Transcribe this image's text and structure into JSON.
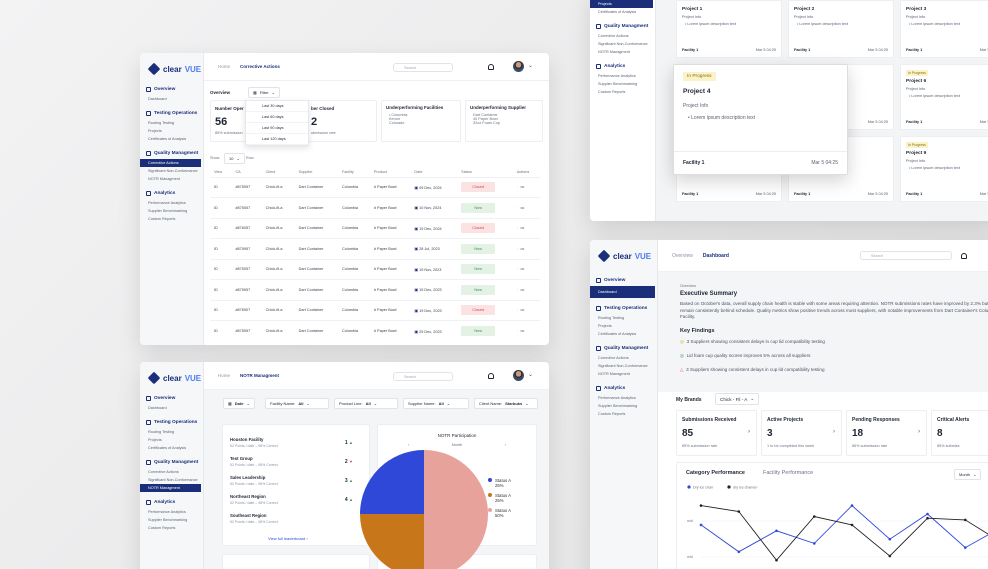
{
  "brand": {
    "name_a": "clear",
    "name_b": "VUE"
  },
  "sidebar": {
    "overview": "Overview",
    "dashboard": "Dashboard",
    "testing": "Testing Operations",
    "testing_items": [
      "Routing Testing",
      "Projects",
      "Certificates of Analysis"
    ],
    "quality": "Quality Managment",
    "quality_items": [
      "Corrective Actions",
      "Significant Non-Conformance",
      "NOTR Managment"
    ],
    "analytics": "Analytics",
    "analytics_items": [
      "Performance Analytics",
      "Supplier Benchmarking",
      "Custom Reports"
    ]
  },
  "w1": {
    "crumb_home": "Home",
    "crumb_current": "Corrective Actions",
    "search_placeholder": "Search",
    "overview_label": "Overview",
    "filter_label": "Filter",
    "filter_options": [
      "Last 30 days",
      "Last 60 days",
      "Last 90 days",
      "Last 120 days"
    ],
    "stats": [
      {
        "label": "Number Oper",
        "value": "56",
        "sub": "85% submission"
      },
      {
        "label": "ber Closed",
        "value": "2",
        "sub": "ubmission rate"
      }
    ],
    "under_facilities": {
      "title": "Underperforming Facilities",
      "items": [
        "Columbia",
        "Kenon",
        "Colorado"
      ]
    },
    "under_supplier": {
      "title": "Underperforming Supplier",
      "items": [
        "Dart Container",
        "40 Paper Bowl",
        "32oz Foam Cup"
      ]
    },
    "show_label": "Show",
    "show_value": "10",
    "row_label": "Row",
    "columns": [
      "View",
      "CA",
      "Client",
      "Supplier",
      "Facility",
      "Product",
      "Date",
      "Status",
      "Actions"
    ],
    "rows": [
      {
        "view": "ID",
        "ca": "#875957",
        "client": "Chick-fil-a",
        "supplier": "Dart Container",
        "facility": "Columbia",
        "product": "# Paper Bowl",
        "date": "09 Dec, 2024",
        "status": "Closed"
      },
      {
        "view": "ID",
        "ca": "#875057",
        "client": "Chick-fil-a",
        "supplier": "Dart Container",
        "facility": "Columbia",
        "product": "# Paper Bowl",
        "date": "10 Nov, 2024",
        "status": "New"
      },
      {
        "view": "ID",
        "ca": "#876057",
        "client": "Chick-fil-a",
        "supplier": "Dart Container",
        "facility": "Columbia",
        "product": "# Paper Bowl",
        "date": "19 Dec, 2024",
        "status": "Closed"
      },
      {
        "view": "ID",
        "ca": "#875957",
        "client": "Chick-fil-a",
        "supplier": "Dart Container",
        "facility": "Columbia",
        "product": "# Paper Bowl",
        "date": "28 Jul, 2023",
        "status": "New"
      },
      {
        "view": "ID",
        "ca": "#875057",
        "client": "Chick-fil-a",
        "supplier": "Dart Container",
        "facility": "Columbia",
        "product": "# Paper Bowl",
        "date": "19 Nov, 2023",
        "status": "New"
      },
      {
        "view": "ID",
        "ca": "#875957",
        "client": "Chick-fil-a",
        "supplier": "Dart Container",
        "facility": "Columbia",
        "product": "# Paper Bowl",
        "date": "15 Dec, 2023",
        "status": "New"
      },
      {
        "view": "ID",
        "ca": "#876907",
        "client": "Chick-fil-a",
        "supplier": "Dart Container",
        "facility": "Columbia",
        "product": "# Paper Bowl",
        "date": "19 Dec, 2023",
        "status": "Closed"
      },
      {
        "view": "ID",
        "ca": "#875957",
        "client": "Chick-fil-a",
        "supplier": "Dart Container",
        "facility": "Columbia",
        "product": "# Paper Bowl",
        "date": "25 Dec, 2023",
        "status": "New"
      }
    ]
  },
  "w2": {
    "crumb_home": "Home",
    "crumb_current": "NOTR Managment",
    "search_placeholder": "Search",
    "date_label": "Date",
    "filters": [
      {
        "label": "Facility Name:",
        "value": "All"
      },
      {
        "label": "Product Line:",
        "value": "All"
      },
      {
        "label": "Supplier Name:",
        "value": "All"
      },
      {
        "label": "Client Name:",
        "value": "Starbuks"
      }
    ],
    "leaders": [
      {
        "name": "Houston Facility",
        "sub": "52 Points / date – 98% Correct",
        "rank": "1"
      },
      {
        "name": "Test Group",
        "sub": "52 Points / date – 98% Correct",
        "rank": "2"
      },
      {
        "name": "Sales Leadership",
        "sub": "52 Points / date – 98% Correct",
        "rank": "3"
      },
      {
        "name": "Northeast Region",
        "sub": "52 Points / date – 98% Correct",
        "rank": "4"
      },
      {
        "name": "Southeast Region",
        "sub": "52 Points / date – 98% Correct",
        "rank": ""
      }
    ],
    "leaderboard_link": "View full leaderboard",
    "participation_title": "NOTR Participation",
    "period": "Month"
  },
  "chart_data": [
    {
      "type": "pie",
      "title": "NOTR Participation",
      "categories": [
        "Status A",
        "Status A",
        "Status A"
      ],
      "values": [
        25,
        25,
        50
      ],
      "labels": [
        "25%",
        "25%",
        "50%"
      ],
      "colors": [
        "#2f48d8",
        "#c8761a",
        "#e8a29c"
      ]
    },
    {
      "type": "line",
      "title": "Category Performance",
      "ylabel_ticks": [
        "mid",
        "mid"
      ],
      "legend": [
        "Dry ice chan",
        "dry ice chamen"
      ],
      "series": [
        {
          "values": [
            62,
            30,
            55,
            40,
            85,
            45,
            75,
            35,
            60
          ]
        },
        {
          "values": [
            85,
            78,
            20,
            72,
            62,
            25,
            70,
            68,
            40
          ]
        }
      ],
      "colors": [
        "#2f48d8",
        "#222222"
      ]
    }
  ],
  "w3": {
    "projects": [
      {
        "title": "Project 1",
        "sub": "Project Info",
        "desc": "Lorem ipsum description text",
        "facility": "Facility 1",
        "date": "Mar 5 04:25"
      },
      {
        "title": "Project 2",
        "sub": "Project Info",
        "desc": "Lorem ipsum description text",
        "facility": "Facility 1",
        "date": "Mar 5 04:25"
      },
      {
        "title": "Project 3",
        "sub": "Project Info",
        "desc": "Lorem ipsum description text",
        "facility": "Facility 1",
        "date": "Mar 5 04:25"
      }
    ],
    "modal": {
      "badge": "In Progress",
      "title": "Project 4",
      "sub": "Project Info",
      "desc": "Lorem ipsum description text",
      "facility": "Facility 1",
      "date": "Mar 5 04:25"
    },
    "side_cards": [
      {
        "badge": "In Progress",
        "title": "Project 6",
        "sub": "Project Info",
        "desc": "Lorem ipsum description text",
        "facility": "Facility 1",
        "date": "Mar 5 04:25"
      },
      {
        "badge": "In Progress",
        "title": "Project 9",
        "sub": "Project Info",
        "desc": "Lorem ipsum description text",
        "facility": "Facility 1",
        "date": "Mar 5 04:25"
      }
    ],
    "sidebar_top": [
      "Projects",
      "Certificates of Analysis"
    ]
  },
  "w4": {
    "crumb_home": "Overview",
    "crumb_current": "Dashboard",
    "search_placeholder": "Search",
    "overview_small": "Overview",
    "exec_title": "Executive Summary",
    "exec_text": "Based on October's data, overall supply chain health is stable with some areas requiring attention. NOTR submissions rates have improved by 2.3% but 5 facilities remain consistently behind schedule. Quality metrics show positive trends across most suppliers, with notable improvements from Dart Container's Columbus Facility.",
    "findings_title": "Key Findings",
    "findings": [
      "3 Suppliers showing consistent delays in cup lid compatibility testing",
      "Lid foam cup quality scores improves 5% across all suppliers",
      "3 Suppliers showing consistent delays in cup lid compatibility testing"
    ],
    "brands_label": "My Brands",
    "brand_value": "Chick - Fil - A",
    "kpis": [
      {
        "label": "Submissions Received",
        "value": "85",
        "sub": "85% submission rate"
      },
      {
        "label": "Active Projects",
        "value": "3",
        "sub": "1 to be completed this week"
      },
      {
        "label": "Pending Responses",
        "value": "18",
        "sub": "85% submission rate"
      },
      {
        "label": "Critical Alerts",
        "value": "8",
        "sub": "85% submiss"
      }
    ],
    "perf_title": "Category Performance",
    "perf_tab": "Facility Performance",
    "perf_period": "Month"
  }
}
